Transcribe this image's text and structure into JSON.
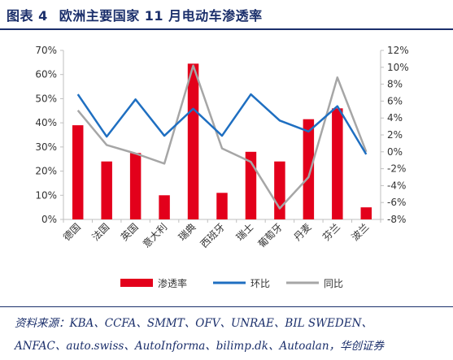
{
  "figure": {
    "label": "图表 4",
    "title": "欧洲主要国家 11 月电动车渗透率"
  },
  "source": {
    "line1": "资料来源：KBA、CCFA、SMMT、OFV、UNRAE、BIL SWEDEN、",
    "line2": "ANFAC、auto.swiss、AutoInforma、bilimp.dk、Autoalan，华创证券"
  },
  "colors": {
    "bar": "#e3001b",
    "mom_line": "#1f6fc1",
    "yoy_line": "#a6a6a6",
    "title": "#1b2f6b"
  },
  "chart_data": {
    "type": "bar",
    "categories": [
      "德国",
      "法国",
      "英国",
      "意大利",
      "瑞典",
      "西班牙",
      "瑞士",
      "葡萄牙",
      "丹麦",
      "芬兰",
      "波兰"
    ],
    "series": [
      {
        "name": "渗透率",
        "type": "bar",
        "axis": "left",
        "values": [
          39,
          24,
          27.5,
          10,
          64.5,
          11,
          28,
          24,
          41.5,
          46,
          5
        ]
      },
      {
        "name": "环比",
        "type": "line",
        "axis": "right",
        "values": [
          6.8,
          1.8,
          6.2,
          1.9,
          5.1,
          1.9,
          6.8,
          3.7,
          2.4,
          5.4,
          -0.3
        ]
      },
      {
        "name": "同比",
        "type": "line",
        "axis": "right",
        "values": [
          4.9,
          0.8,
          -0.2,
          -1.4,
          10.2,
          0.4,
          -1.2,
          -6.7,
          -3.0,
          8.8,
          0.0
        ]
      }
    ],
    "y_left": {
      "range": [
        0,
        70
      ],
      "ticks": [
        "0%",
        "10%",
        "20%",
        "30%",
        "40%",
        "50%",
        "60%",
        "70%"
      ]
    },
    "y_right": {
      "range": [
        -8,
        12
      ],
      "ticks": [
        "-8%",
        "-6%",
        "-4%",
        "-2%",
        "0%",
        "2%",
        "4%",
        "6%",
        "8%",
        "10%",
        "12%"
      ]
    },
    "legend_position": "bottom",
    "grid": false
  }
}
